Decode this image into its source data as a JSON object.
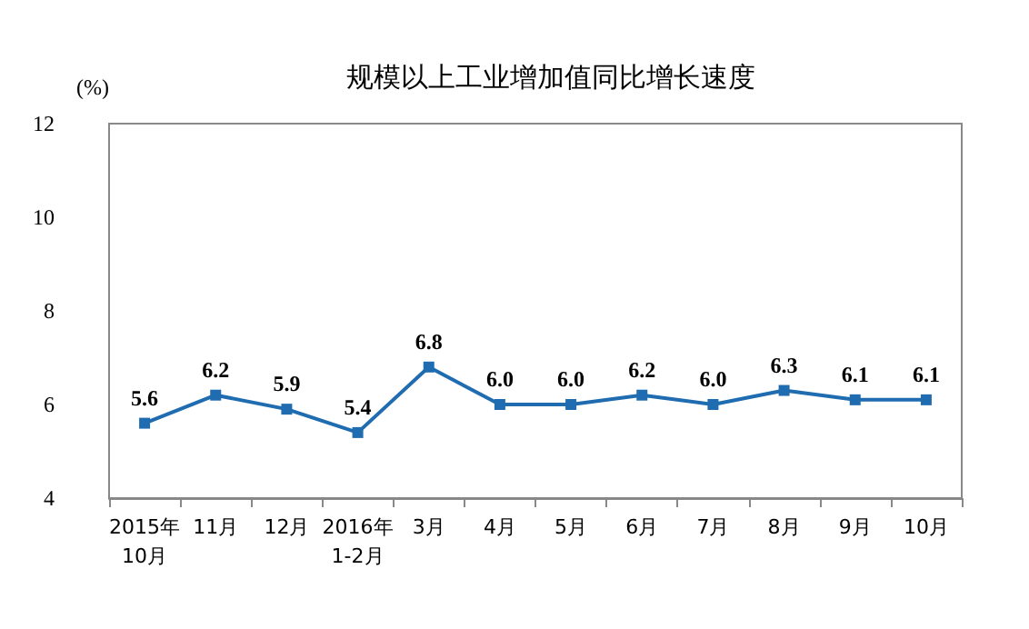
{
  "chart_data": {
    "type": "line",
    "title": "规模以上工业增加值同比增长速度",
    "ylabel": "(%)",
    "categories": [
      "2015年\n10月",
      "11月",
      "12月",
      "2016年\n1-2月",
      "3月",
      "4月",
      "5月",
      "6月",
      "7月",
      "8月",
      "9月",
      "10月"
    ],
    "values": [
      5.6,
      6.2,
      5.9,
      5.4,
      6.8,
      6.0,
      6.0,
      6.2,
      6.0,
      6.3,
      6.1,
      6.1
    ],
    "color": "#1f6cb0",
    "ylim": [
      4,
      12
    ],
    "yticks": [
      4,
      6,
      8,
      10,
      12
    ],
    "value_labels": [
      "5.6",
      "6.2",
      "5.9",
      "5.4",
      "6.8",
      "6.0",
      "6.0",
      "6.2",
      "6.0",
      "6.3",
      "6.1",
      "6.1"
    ],
    "grid": false,
    "marker": "square",
    "line_style": "solid"
  }
}
